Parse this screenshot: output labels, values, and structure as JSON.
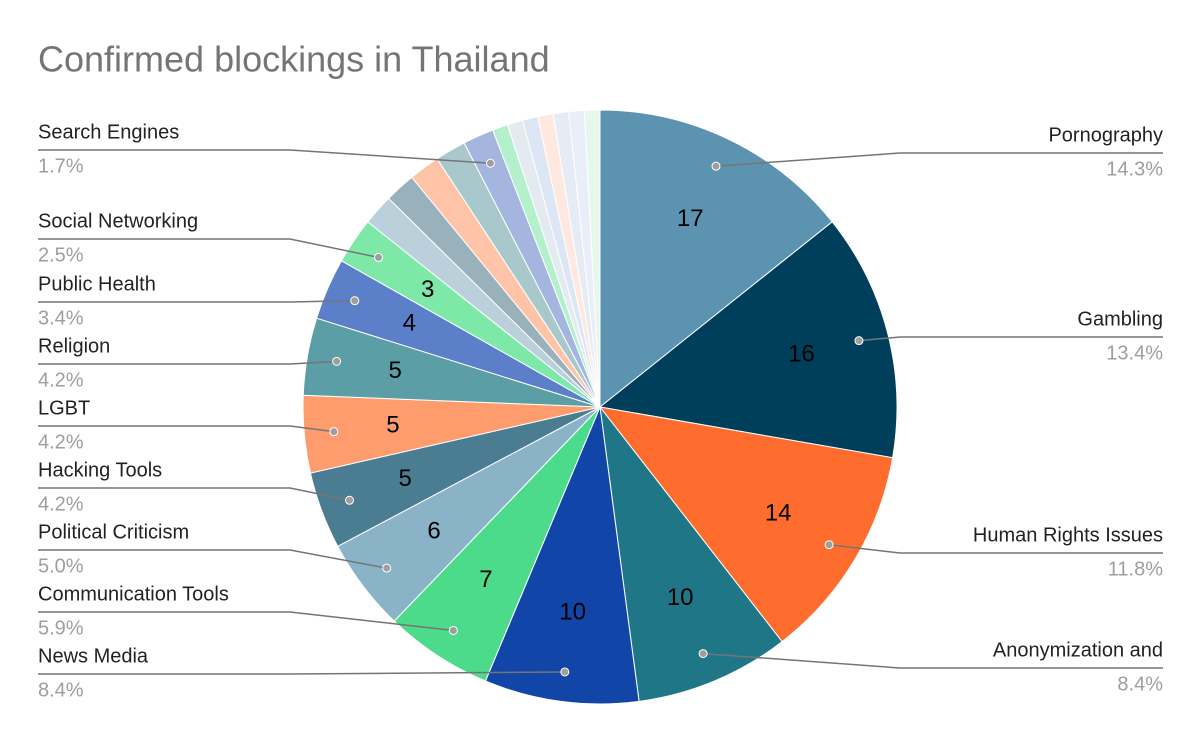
{
  "chart_data": {
    "type": "pie",
    "title": "Confirmed blockings in Thailand",
    "categories": [
      "Pornography",
      "Gambling",
      "Human Rights Issues",
      "Anonymization and",
      "News Media",
      "Communication Tools",
      "Political Criticism",
      "Hacking Tools",
      "LGBT",
      "Religion",
      "Public Health",
      "Social Networking",
      null,
      null,
      null,
      null,
      "Search Engines",
      null,
      null,
      null,
      null,
      null,
      null,
      null
    ],
    "values": [
      17,
      16,
      14,
      10,
      10,
      7,
      6,
      5,
      5,
      5,
      4,
      3,
      2,
      2,
      2,
      2,
      2,
      1,
      1,
      1,
      1,
      1,
      1,
      1
    ],
    "percent_labels": [
      "14.3%",
      "13.4%",
      "11.8%",
      "8.4%",
      "8.4%",
      "5.9%",
      "5.0%",
      "4.2%",
      "4.2%",
      "4.2%",
      "3.4%",
      "2.5%",
      null,
      null,
      null,
      null,
      "1.7%",
      null,
      null,
      null,
      null,
      null,
      null,
      null
    ],
    "colors": [
      "#5b93b0",
      "#003f5c",
      "#ff6d2e",
      "#1f7687",
      "#1245a8",
      "#4cdb8a",
      "#8bb3c8",
      "#4a7c92",
      "#ff9c6e",
      "#5b9ea6",
      "#5b7fc9",
      "#7de8a8",
      "#bcd0dc",
      "#98b1bb",
      "#ffc3a8",
      "#a8c8cc",
      "#a4b5e0",
      "#b5f0cc",
      "#e4ebf0",
      "#dde6f4",
      "#ffe8df",
      "#e6ecf5",
      "#e9eef8",
      "#e6f8ee"
    ]
  }
}
